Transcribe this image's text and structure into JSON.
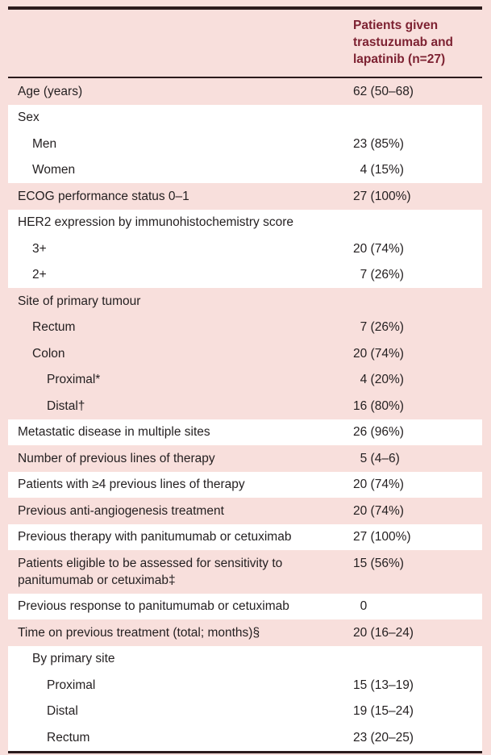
{
  "colors": {
    "page_pink": "#f8dfdc",
    "row_white": "#ffffff",
    "header_maroon": "#7d2232",
    "body_text": "#231f20",
    "border_dark": "#2b1b1c"
  },
  "table": {
    "column_header": "Patients given trastuzumab and lapatinib (n=27)",
    "rows": [
      {
        "label": "Age (years)",
        "value": "62 (50–68)",
        "indent": 0,
        "shade": "pink",
        "pad": 0
      },
      {
        "label": "Sex",
        "value": "",
        "indent": 0,
        "shade": "white",
        "pad": 0
      },
      {
        "label": "Men",
        "value": "23 (85%)",
        "indent": 1,
        "shade": "white",
        "pad": 0
      },
      {
        "label": "Women",
        "value": "4 (15%)",
        "indent": 1,
        "shade": "white",
        "pad": 1
      },
      {
        "label": "ECOG performance status 0–1",
        "value": "27 (100%)",
        "indent": 0,
        "shade": "pink",
        "pad": 0
      },
      {
        "label": "HER2 expression by immunohistochemistry score",
        "value": "",
        "indent": 0,
        "shade": "white",
        "pad": 0
      },
      {
        "label": "3+",
        "value": "20 (74%)",
        "indent": 1,
        "shade": "white",
        "pad": 0
      },
      {
        "label": "2+",
        "value": "7 (26%)",
        "indent": 1,
        "shade": "white",
        "pad": 1
      },
      {
        "label": "Site of primary tumour",
        "value": "",
        "indent": 0,
        "shade": "pink",
        "pad": 0
      },
      {
        "label": "Rectum",
        "value": "7 (26%)",
        "indent": 1,
        "shade": "pink",
        "pad": 1
      },
      {
        "label": "Colon",
        "value": "20 (74%)",
        "indent": 1,
        "shade": "pink",
        "pad": 0
      },
      {
        "label": "Proximal*",
        "value": "4 (20%)",
        "indent": 2,
        "shade": "pink",
        "pad": 1
      },
      {
        "label": "Distal†",
        "value": "16 (80%)",
        "indent": 2,
        "shade": "pink",
        "pad": 0
      },
      {
        "label": "Metastatic disease in multiple sites",
        "value": "26 (96%)",
        "indent": 0,
        "shade": "white",
        "pad": 0
      },
      {
        "label": "Number of previous lines of therapy",
        "value": "5 (4–6)",
        "indent": 0,
        "shade": "pink",
        "pad": 1
      },
      {
        "label": "Patients with ≥4 previous lines of therapy",
        "value": "20 (74%)",
        "indent": 0,
        "shade": "white",
        "pad": 0
      },
      {
        "label": "Previous anti-angiogenesis treatment",
        "value": "20 (74%)",
        "indent": 0,
        "shade": "pink",
        "pad": 0
      },
      {
        "label": "Previous therapy with panitumumab or cetuximab",
        "value": "27 (100%)",
        "indent": 0,
        "shade": "white",
        "pad": 0
      },
      {
        "label": "Patients eligible to be assessed for sensitivity to panitumumab or cetuximab‡",
        "value": "15 (56%)",
        "indent": 0,
        "shade": "pink",
        "pad": 0
      },
      {
        "label": "Previous response to panitumumab or cetuximab",
        "value": "0",
        "indent": 0,
        "shade": "white",
        "pad": 1
      },
      {
        "label": "Time on previous treatment (total; months)§",
        "value": "20 (16–24)",
        "indent": 0,
        "shade": "pink",
        "pad": 0
      },
      {
        "label": "By primary site",
        "value": "",
        "indent": 1,
        "shade": "white",
        "pad": 0
      },
      {
        "label": "Proximal",
        "value": "15 (13–19)",
        "indent": 2,
        "shade": "white",
        "pad": 0
      },
      {
        "label": "Distal",
        "value": "19 (15–24)",
        "indent": 2,
        "shade": "white",
        "pad": 0
      },
      {
        "label": "Rectum",
        "value": "23 (20–25)",
        "indent": 2,
        "shade": "white",
        "pad": 0
      }
    ]
  },
  "chart_data": {
    "type": "table",
    "columns": [
      "",
      "Patients given trastuzumab and lapatinib (n=27)"
    ],
    "rows": [
      [
        "Age (years)",
        "62 (50–68)"
      ],
      [
        "Sex",
        ""
      ],
      [
        "Men",
        "23 (85%)"
      ],
      [
        "Women",
        "4 (15%)"
      ],
      [
        "ECOG performance status 0–1",
        "27 (100%)"
      ],
      [
        "HER2 expression by immunohistochemistry score",
        ""
      ],
      [
        "3+",
        "20 (74%)"
      ],
      [
        "2+",
        "7 (26%)"
      ],
      [
        "Site of primary tumour",
        ""
      ],
      [
        "Rectum",
        "7 (26%)"
      ],
      [
        "Colon",
        "20 (74%)"
      ],
      [
        "Proximal*",
        "4 (20%)"
      ],
      [
        "Distal†",
        "16 (80%)"
      ],
      [
        "Metastatic disease in multiple sites",
        "26 (96%)"
      ],
      [
        "Number of previous lines of therapy",
        "5 (4–6)"
      ],
      [
        "Patients with ≥4 previous lines of therapy",
        "20 (74%)"
      ],
      [
        "Previous anti-angiogenesis treatment",
        "20 (74%)"
      ],
      [
        "Previous therapy with panitumumab or cetuximab",
        "27 (100%)"
      ],
      [
        "Patients eligible to be assessed for sensitivity to panitumumab or cetuximab‡",
        "15 (56%)"
      ],
      [
        "Previous response to panitumumab or cetuximab",
        "0"
      ],
      [
        "Time on previous treatment (total; months)§",
        "20 (16–24)"
      ],
      [
        "By primary site",
        ""
      ],
      [
        "Proximal",
        "15 (13–19)"
      ],
      [
        "Distal",
        "19 (15–24)"
      ],
      [
        "Rectum",
        "23 (20–25)"
      ]
    ]
  }
}
